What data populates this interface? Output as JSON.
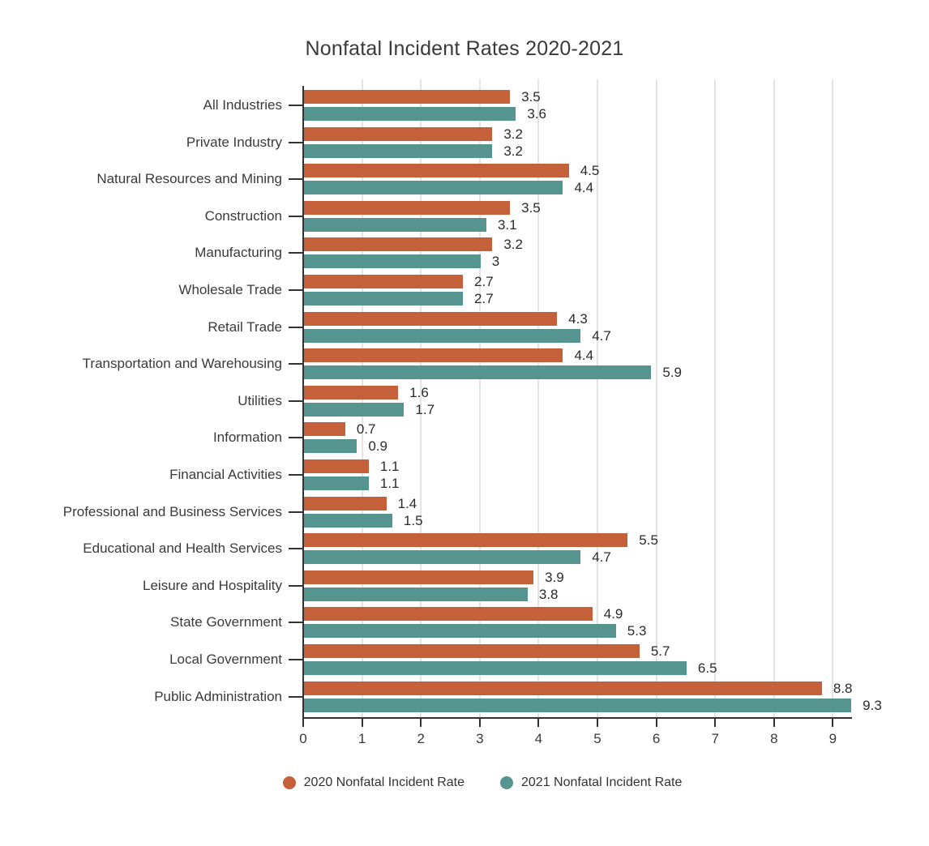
{
  "chart_data": {
    "type": "bar",
    "orientation": "horizontal",
    "title": "Nonfatal Incident Rates 2020-2021",
    "categories": [
      "All Industries",
      "Private Industry",
      "Natural Resources and Mining",
      "Construction",
      "Manufacturing",
      "Wholesale Trade",
      "Retail Trade",
      "Transportation and Warehousing",
      "Utilities",
      "Information",
      "Financial Activities",
      "Professional and Business Services",
      "Educational and Health Services",
      "Leisure and Hospitality",
      "State Government",
      "Local Government",
      "Public Administration"
    ],
    "series": [
      {
        "name": "2020 Nonfatal Incident Rate",
        "color": "#C4603A",
        "values": [
          3.5,
          3.2,
          4.5,
          3.5,
          3.2,
          2.7,
          4.3,
          4.4,
          1.6,
          0.7,
          1.1,
          1.4,
          5.5,
          3.9,
          4.9,
          5.7,
          8.8
        ]
      },
      {
        "name": "2021 Nonfatal Incident Rate",
        "color": "#55948F",
        "values": [
          3.6,
          3.2,
          4.4,
          3.1,
          3,
          2.7,
          4.7,
          5.9,
          1.7,
          0.9,
          1.1,
          1.5,
          4.7,
          3.8,
          5.3,
          6.5,
          9.3
        ]
      }
    ],
    "x_ticks": [
      0,
      1,
      2,
      3,
      4,
      5,
      6,
      7,
      8,
      9
    ],
    "xlim": [
      0,
      9.3
    ],
    "grid": "vertical",
    "data_labels": true,
    "legend_position": "bottom",
    "colors": {
      "axis": "#333333",
      "gridline": "#E4E4E4",
      "text": "#3A3A3A",
      "background": "#FFFFFF"
    }
  }
}
